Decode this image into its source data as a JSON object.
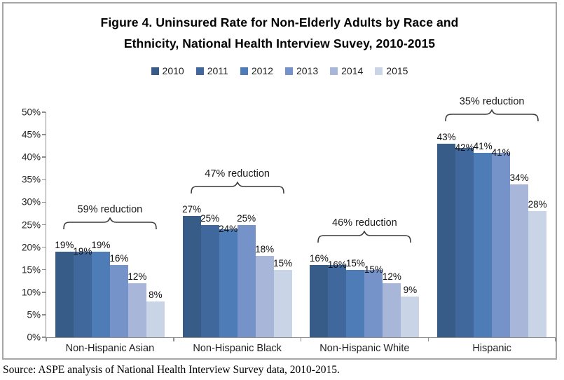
{
  "title": {
    "line1": "Figure 4. Uninsured Rate for Non-Elderly Adults by Race and",
    "line2": "Ethnicity, National Health Interview Suvey, 2010-2015"
  },
  "source": "Source: ASPE analysis of National Health Interview Survey data, 2010-2015.",
  "colors": {
    "axis": "#8e8e8e",
    "bracket": "#3a3a3a",
    "frame_border": "#a6a6a6"
  },
  "chart_data": {
    "type": "bar",
    "title": "Figure 4. Uninsured Rate for Non-Elderly Adults by Race and Ethnicity, National Health Interview Suvey, 2010-2015",
    "categories": [
      "Non-Hispanic Asian",
      "Non-Hispanic Black",
      "Non-Hispanic White",
      "Hispanic"
    ],
    "series": [
      {
        "name": "2010",
        "color": "#375c87",
        "values": [
          19,
          27,
          16,
          43
        ]
      },
      {
        "name": "2011",
        "color": "#41689c",
        "values": [
          19,
          25,
          16,
          42
        ]
      },
      {
        "name": "2012",
        "color": "#4d7cb7",
        "values": [
          19,
          24,
          15,
          41
        ]
      },
      {
        "name": "2013",
        "color": "#7593c8",
        "values": [
          16,
          25,
          15,
          41
        ]
      },
      {
        "name": "2014",
        "color": "#a8b7d9",
        "values": [
          12,
          18,
          12,
          34
        ]
      },
      {
        "name": "2015",
        "color": "#cad4e7",
        "values": [
          8,
          15,
          9,
          28
        ]
      }
    ],
    "value_suffix": "%",
    "data_labels": true,
    "ylim": [
      0,
      50
    ],
    "ytick_step": 5,
    "yticks": [
      "0%",
      "5%",
      "10%",
      "15%",
      "20%",
      "25%",
      "30%",
      "35%",
      "40%",
      "45%",
      "50%"
    ],
    "grid": false,
    "legend_position": "top",
    "annotations": [
      {
        "category": "Non-Hispanic Asian",
        "label": "59% reduction"
      },
      {
        "category": "Non-Hispanic Black",
        "label": "47% reduction"
      },
      {
        "category": "Non-Hispanic White",
        "label": "46% reduction"
      },
      {
        "category": "Hispanic",
        "label": "35% reduction"
      }
    ]
  }
}
